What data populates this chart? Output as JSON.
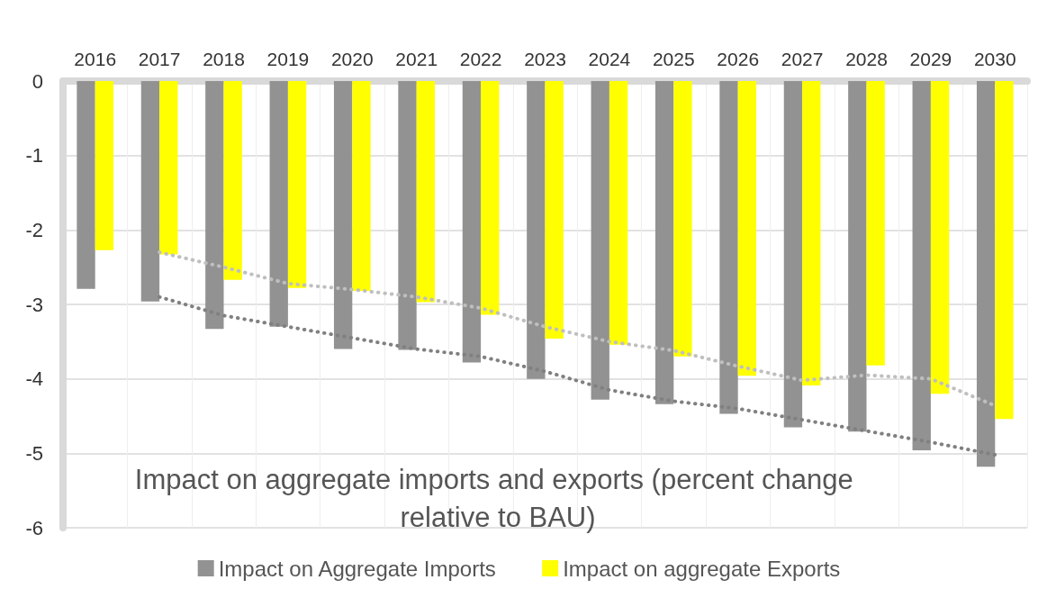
{
  "chart_data": {
    "type": "bar",
    "title": "Impact on aggregate imports and exports (percent change relative to BAU)",
    "categories": [
      "2016",
      "2017",
      "2018",
      "2019",
      "2020",
      "2021",
      "2022",
      "2023",
      "2024",
      "2025",
      "2026",
      "2027",
      "2028",
      "2029",
      "2030"
    ],
    "series": [
      {
        "name": "Impact on Aggregate Imports",
        "color": "#929292",
        "values": [
          -2.79,
          -2.96,
          -3.33,
          -3.3,
          -3.6,
          -3.61,
          -3.78,
          -4.0,
          -4.28,
          -4.34,
          -4.47,
          -4.65,
          -4.71,
          -4.96,
          -5.18
        ]
      },
      {
        "name": "Impact on aggregate Exports",
        "color": "#ffff00",
        "values": [
          -2.27,
          -2.33,
          -2.67,
          -2.78,
          -2.82,
          -2.97,
          -3.14,
          -3.46,
          -3.54,
          -3.7,
          -3.96,
          -4.09,
          -3.82,
          -4.2,
          -4.54
        ]
      },
      {
        "type": "line",
        "color": "#808080",
        "line_style": "dotted",
        "marker": "none",
        "values": [
          null,
          -2.9,
          -3.15,
          -3.3,
          -3.45,
          -3.6,
          -3.7,
          -3.9,
          -4.15,
          -4.3,
          -4.4,
          -4.55,
          -4.7,
          -4.85,
          -5.02
        ]
      },
      {
        "type": "line",
        "color": "#bfbfbf",
        "line_style": "dotted",
        "marker": "none",
        "values": [
          null,
          -2.3,
          -2.5,
          -2.72,
          -2.8,
          -2.9,
          -3.05,
          -3.3,
          -3.5,
          -3.62,
          -3.83,
          -4.02,
          -3.95,
          -4.0,
          -4.36
        ]
      }
    ],
    "ylim": [
      -6,
      0
    ],
    "yticks": [
      -6,
      -5,
      -4,
      -3,
      -2,
      -1,
      0
    ],
    "grid": true,
    "legend": "bottom"
  }
}
